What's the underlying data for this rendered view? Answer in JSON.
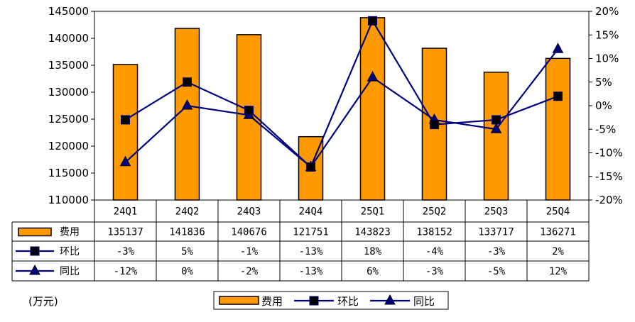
{
  "chart_data": {
    "type": "bar",
    "categories": [
      "24Q1",
      "24Q2",
      "24Q3",
      "24Q4",
      "25Q1",
      "25Q2",
      "25Q3",
      "25Q4"
    ],
    "series": [
      {
        "name": "费用",
        "type": "bar",
        "axis": "left",
        "values": [
          135137,
          141836,
          140676,
          121751,
          143823,
          138152,
          133717,
          136271
        ],
        "color": "#FF9900",
        "table_values": [
          "135137",
          "141836",
          "140676",
          "121751",
          "143823",
          "138152",
          "133717",
          "136271"
        ]
      },
      {
        "name": "环比",
        "type": "line",
        "axis": "right",
        "marker": "square",
        "values": [
          -3,
          5,
          -1,
          -13,
          18,
          -4,
          -3,
          2
        ],
        "color": "#000080",
        "table_values": [
          "-3%",
          "5%",
          "-1%",
          "-13%",
          "18%",
          "-4%",
          "-3%",
          "2%"
        ]
      },
      {
        "name": "同比",
        "type": "line",
        "axis": "right",
        "marker": "triangle",
        "values": [
          -12,
          0,
          -2,
          -13,
          6,
          -3,
          -5,
          12
        ],
        "color": "#000080",
        "table_values": [
          "-12%",
          "0%",
          "-2%",
          "-13%",
          "6%",
          "-3%",
          "-5%",
          "12%"
        ]
      }
    ],
    "ylim": [
      110000,
      145000
    ],
    "y_ticks": [
      "110000",
      "115000",
      "120000",
      "125000",
      "130000",
      "135000",
      "140000",
      "145000"
    ],
    "y2lim": [
      -20,
      20
    ],
    "y2_ticks": [
      "-20%",
      "-15%",
      "-10%",
      "-5%",
      "0%",
      "5%",
      "10%",
      "15%",
      "20%"
    ],
    "unit_label": "(万元)",
    "legend_position": "bottom-center",
    "data_table": true,
    "grid": false
  }
}
